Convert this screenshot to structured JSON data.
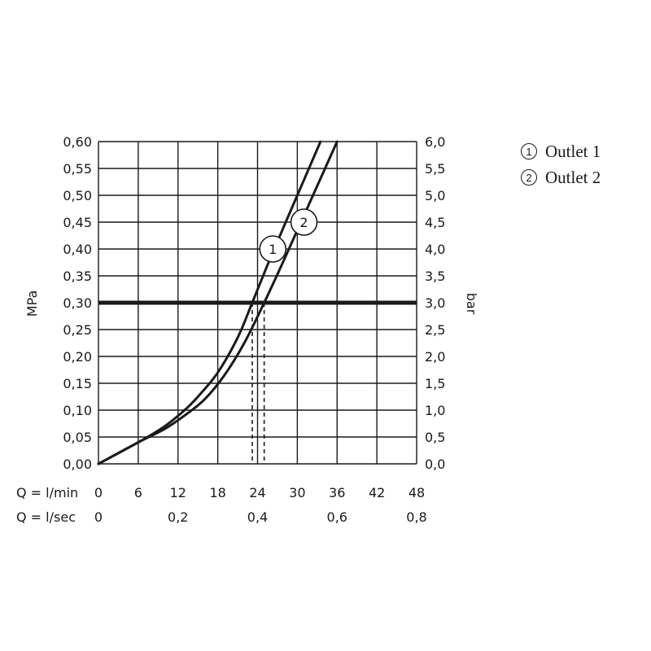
{
  "chart_data": {
    "type": "line",
    "xlabel_min": "Q = l/min",
    "xlabel_sec": "Q = l/sec",
    "ylabel_left": "MPa",
    "ylabel_right": "bar",
    "xlim": [
      0,
      48
    ],
    "ylim": [
      0,
      0.6
    ],
    "grid": true,
    "legend_position": "top-right",
    "x_ticks_min": [
      "0",
      "6",
      "12",
      "18",
      "24",
      "30",
      "36",
      "42",
      "48"
    ],
    "x_ticks_sec": [
      {
        "x": 0,
        "label": "0"
      },
      {
        "x": 12,
        "label": "0,2"
      },
      {
        "x": 24,
        "label": "0,4"
      },
      {
        "x": 36,
        "label": "0,6"
      },
      {
        "x": 48,
        "label": "0,8"
      }
    ],
    "y_ticks_left": [
      "0,00",
      "0,05",
      "0,10",
      "0,15",
      "0,20",
      "0,25",
      "0,30",
      "0,35",
      "0,40",
      "0,45",
      "0,50",
      "0,55",
      "0,60"
    ],
    "y_ticks_right": [
      "0,0",
      "0,5",
      "1,0",
      "1,5",
      "2,0",
      "2,5",
      "3,0",
      "3,5",
      "4,0",
      "4,5",
      "5,0",
      "5,5",
      "6,0"
    ],
    "reference_line": {
      "y": 0.3
    },
    "series": [
      {
        "marker": "1",
        "marker_at": {
          "x": 26.3,
          "y": 0.4
        },
        "drop_x": 23.2,
        "points": [
          [
            0,
            0
          ],
          [
            6,
            0.04
          ],
          [
            10,
            0.07
          ],
          [
            13,
            0.1
          ],
          [
            15,
            0.125
          ],
          [
            18,
            0.17
          ],
          [
            21,
            0.235
          ],
          [
            23.2,
            0.3
          ],
          [
            26,
            0.385
          ],
          [
            30,
            0.5
          ],
          [
            33.5,
            0.6
          ]
        ]
      },
      {
        "marker": "2",
        "marker_at": {
          "x": 31,
          "y": 0.45
        },
        "drop_x": 25,
        "points": [
          [
            0,
            0
          ],
          [
            6,
            0.04
          ],
          [
            10,
            0.065
          ],
          [
            13,
            0.09
          ],
          [
            16,
            0.12
          ],
          [
            19,
            0.165
          ],
          [
            22,
            0.225
          ],
          [
            25,
            0.3
          ],
          [
            28,
            0.38
          ],
          [
            32,
            0.49
          ],
          [
            36,
            0.6
          ]
        ]
      }
    ],
    "legend": [
      {
        "marker": "1",
        "label": "Outlet 1"
      },
      {
        "marker": "2",
        "label": "Outlet 2"
      }
    ]
  }
}
